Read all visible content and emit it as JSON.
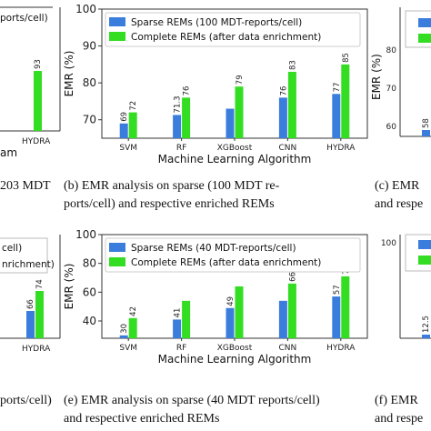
{
  "colors": {
    "sparse": "#3b7ddd",
    "complete": "#33dd22",
    "axis": "#333333"
  },
  "chart_data": [
    {
      "type": "bar",
      "panel": "b",
      "categories": [
        "SVM",
        "RF",
        "XGBoost",
        "CNN",
        "HYDRA"
      ],
      "series": [
        {
          "name": "Sparse REMs (100 MDT-reports/cell)",
          "values": [
            69,
            71.3,
            73,
            76,
            77
          ],
          "labels": [
            "69",
            "71.3",
            "",
            "76",
            "77"
          ]
        },
        {
          "name": "Complete REMs (after data enrichment)",
          "values": [
            72,
            76,
            79,
            83,
            85
          ],
          "labels": [
            "72",
            "76",
            "79",
            "83",
            "85"
          ]
        }
      ],
      "ylabel": "EMR (%)",
      "xlabel": "Machine Learning Algorithm",
      "ylim": [
        65,
        100
      ],
      "yticks": [
        70,
        80,
        90,
        100
      ],
      "legend": "top"
    },
    {
      "type": "bar",
      "panel": "e",
      "categories": [
        "SVM",
        "RF",
        "XGBoost",
        "CNN",
        "HYDRA"
      ],
      "series": [
        {
          "name": "Sparse REMs (40 MDT-reports/cell)",
          "values": [
            30,
            41,
            49,
            54,
            57
          ],
          "labels": [
            "30",
            "41",
            "49",
            "",
            "57"
          ]
        },
        {
          "name": "Complete REMs (after data enrichment)",
          "values": [
            42,
            54,
            64,
            66,
            71
          ],
          "labels": [
            "42",
            "",
            "",
            "66",
            "71"
          ]
        }
      ],
      "ylabel": "EMR (%)",
      "xlabel": "Machine Learning Algorithm",
      "ylim": [
        28,
        100
      ],
      "yticks": [
        40,
        60,
        80,
        100
      ],
      "legend": "top"
    }
  ],
  "captions": {
    "b_line1": "(b)  EMR  analysis  on  sparse  (100  MDT  re-",
    "b_line2": "ports/cell) and respective enriched REMs",
    "e_line1": "(e) EMR analysis on sparse (40 MDT reports/cell)",
    "e_line2": "and respective enriched REMs",
    "a_fragment": "203 MDT",
    "c_line1": "(c) EMR",
    "c_line2": "and respe",
    "d_fragment": "ports/cell)",
    "f_line1": "(f)  EMR",
    "f_line2": "and respe"
  },
  "side_panels": {
    "left_top": {
      "legend_fragment": "ports/cell)",
      "ylabel_fragment": "am",
      "category": "HYDRA",
      "value": "93"
    },
    "left_bottom": {
      "legend_fragment1": "cell)",
      "legend_fragment2": "nrichment)",
      "category": "HYDRA",
      "values": [
        "66",
        "74"
      ]
    },
    "right_top": {
      "ylabel": "EMR (%)",
      "ticks": [
        "80",
        "70",
        "60"
      ],
      "data_label": "58"
    },
    "right_bottom": {
      "ticks": [
        "100"
      ],
      "data_label": "12.5"
    }
  }
}
